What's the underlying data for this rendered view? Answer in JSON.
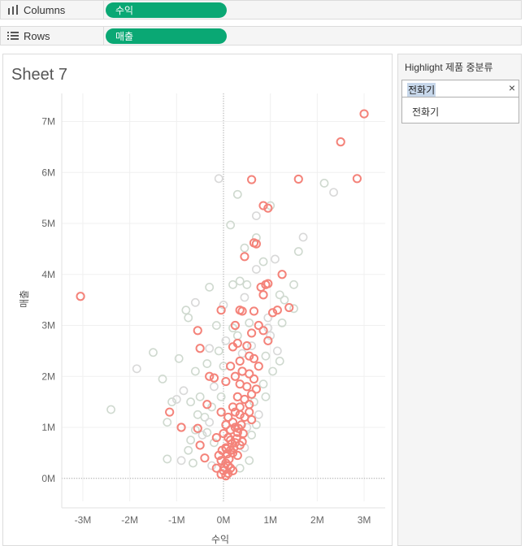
{
  "shelves": {
    "columns": {
      "label": "Columns",
      "pill": "수익"
    },
    "rows": {
      "label": "Rows",
      "pill": "매출"
    }
  },
  "sheet": {
    "title": "Sheet 7"
  },
  "highlight": {
    "title": "Highlight 제품 중분류",
    "value": "전화기",
    "clear_symbol": "×",
    "options": [
      "전화기"
    ]
  },
  "chart_data": {
    "type": "scatter",
    "xlabel": "수익",
    "ylabel": "매출",
    "xlim": [
      -3.45,
      3.45
    ],
    "ylim": [
      -0.45,
      7.55
    ],
    "x_ticks": [
      {
        "v": -3,
        "label": "-3M"
      },
      {
        "v": -2,
        "label": "-2M"
      },
      {
        "v": -1,
        "label": "-1M"
      },
      {
        "v": 0,
        "label": "0M"
      },
      {
        "v": 1,
        "label": "1M"
      },
      {
        "v": 2,
        "label": "2M"
      },
      {
        "v": 3,
        "label": "3M"
      }
    ],
    "y_ticks": [
      {
        "v": 0,
        "label": "0M"
      },
      {
        "v": 1,
        "label": "1M"
      },
      {
        "v": 2,
        "label": "2M"
      },
      {
        "v": 3,
        "label": "3M"
      },
      {
        "v": 4,
        "label": "4M"
      },
      {
        "v": 5,
        "label": "5M"
      },
      {
        "v": 6,
        "label": "6M"
      },
      {
        "v": 7,
        "label": "7M"
      }
    ],
    "colors": {
      "highlight": "#f4837a",
      "dim": "#cfd9cf",
      "dim2": "#d8d8d8"
    },
    "highlight_points": [
      [
        3.0,
        7.15
      ],
      [
        2.5,
        6.6
      ],
      [
        2.85,
        5.88
      ],
      [
        1.6,
        5.87
      ],
      [
        0.6,
        5.86
      ],
      [
        0.85,
        5.35
      ],
      [
        0.95,
        5.3
      ],
      [
        0.65,
        4.62
      ],
      [
        0.7,
        4.6
      ],
      [
        0.45,
        4.35
      ],
      [
        -3.05,
        3.57
      ],
      [
        1.25,
        4.0
      ],
      [
        0.9,
        3.8
      ],
      [
        0.95,
        3.82
      ],
      [
        0.8,
        3.75
      ],
      [
        0.85,
        3.6
      ],
      [
        0.35,
        3.3
      ],
      [
        -0.05,
        3.3
      ],
      [
        0.4,
        3.28
      ],
      [
        0.25,
        3.0
      ],
      [
        0.65,
        3.28
      ],
      [
        1.15,
        3.3
      ],
      [
        1.4,
        3.35
      ],
      [
        1.05,
        3.25
      ],
      [
        0.75,
        3.0
      ],
      [
        0.85,
        2.9
      ],
      [
        0.6,
        2.85
      ],
      [
        0.95,
        2.7
      ],
      [
        0.3,
        2.65
      ],
      [
        0.5,
        2.6
      ],
      [
        0.2,
        2.58
      ],
      [
        -0.55,
        2.9
      ],
      [
        -0.5,
        2.55
      ],
      [
        0.55,
        2.4
      ],
      [
        0.65,
        2.35
      ],
      [
        0.35,
        2.3
      ],
      [
        0.15,
        2.2
      ],
      [
        0.75,
        2.2
      ],
      [
        0.4,
        2.1
      ],
      [
        0.25,
        2.0
      ],
      [
        0.55,
        2.05
      ],
      [
        0.65,
        1.95
      ],
      [
        -0.3,
        2.0
      ],
      [
        -0.2,
        1.97
      ],
      [
        0.05,
        1.9
      ],
      [
        0.35,
        1.85
      ],
      [
        0.5,
        1.8
      ],
      [
        0.7,
        1.75
      ],
      [
        0.6,
        1.65
      ],
      [
        0.3,
        1.6
      ],
      [
        0.45,
        1.55
      ],
      [
        0.55,
        1.45
      ],
      [
        0.2,
        1.4
      ],
      [
        -0.35,
        1.45
      ],
      [
        -1.15,
        1.3
      ],
      [
        0.25,
        1.3
      ],
      [
        0.35,
        1.25
      ],
      [
        0.45,
        1.2
      ],
      [
        0.55,
        1.3
      ],
      [
        0.6,
        1.15
      ],
      [
        0.1,
        1.2
      ],
      [
        0.2,
        1.1
      ],
      [
        -0.05,
        1.3
      ],
      [
        0.05,
        1.05
      ],
      [
        -0.9,
        1.0
      ],
      [
        -0.55,
        0.98
      ],
      [
        0.15,
        0.95
      ],
      [
        0.3,
        0.9
      ],
      [
        0.0,
        0.88
      ],
      [
        -0.15,
        0.8
      ],
      [
        0.1,
        0.8
      ],
      [
        0.25,
        0.7
      ],
      [
        0.35,
        0.65
      ],
      [
        0.4,
        0.72
      ],
      [
        -0.5,
        0.65
      ],
      [
        0.05,
        0.6
      ],
      [
        0.15,
        0.55
      ],
      [
        0.2,
        0.5
      ],
      [
        0.3,
        0.45
      ],
      [
        -0.4,
        0.4
      ],
      [
        -0.1,
        0.45
      ],
      [
        -0.05,
        0.35
      ],
      [
        0.05,
        0.3
      ],
      [
        0.1,
        0.25
      ],
      [
        0.15,
        0.2
      ],
      [
        0.2,
        0.15
      ],
      [
        -0.15,
        0.2
      ],
      [
        0.0,
        0.15
      ],
      [
        0.05,
        0.05
      ],
      [
        0.1,
        0.1
      ],
      [
        -0.05,
        0.08
      ],
      [
        0.02,
        0.22
      ],
      [
        0.12,
        0.38
      ],
      [
        0.22,
        0.6
      ],
      [
        0.28,
        0.78
      ],
      [
        0.32,
        0.98
      ],
      [
        0.18,
        0.68
      ],
      [
        0.08,
        0.48
      ],
      [
        0.38,
        1.05
      ],
      [
        0.42,
        0.88
      ],
      [
        0.25,
        1.0
      ],
      [
        0.15,
        0.75
      ],
      [
        0.06,
        0.58
      ],
      [
        -0.03,
        0.55
      ],
      [
        0.35,
        1.4
      ]
    ],
    "dim_points": [
      [
        -0.1,
        5.88
      ],
      [
        0.3,
        5.57
      ],
      [
        1.0,
        5.35
      ],
      [
        0.7,
        5.15
      ],
      [
        0.15,
        4.97
      ],
      [
        2.15,
        5.79
      ],
      [
        2.35,
        5.61
      ],
      [
        0.45,
        4.52
      ],
      [
        0.7,
        4.72
      ],
      [
        1.7,
        4.73
      ],
      [
        1.6,
        4.45
      ],
      [
        0.85,
        4.25
      ],
      [
        1.1,
        4.3
      ],
      [
        1.5,
        3.8
      ],
      [
        1.2,
        3.6
      ],
      [
        0.45,
        3.55
      ],
      [
        0.35,
        3.87
      ],
      [
        -0.3,
        3.75
      ],
      [
        -0.6,
        3.45
      ],
      [
        -0.8,
        3.3
      ],
      [
        -0.75,
        3.15
      ],
      [
        0.0,
        3.4
      ],
      [
        1.5,
        3.33
      ],
      [
        1.25,
        3.05
      ],
      [
        0.95,
        3.15
      ],
      [
        0.55,
        3.05
      ],
      [
        0.2,
        2.95
      ],
      [
        -0.3,
        2.55
      ],
      [
        -1.5,
        2.47
      ],
      [
        -0.95,
        2.35
      ],
      [
        -1.85,
        2.15
      ],
      [
        -1.3,
        1.95
      ],
      [
        -0.6,
        2.1
      ],
      [
        -0.85,
        1.72
      ],
      [
        -0.7,
        1.5
      ],
      [
        -1.1,
        1.5
      ],
      [
        -1.0,
        1.55
      ],
      [
        -2.4,
        1.35
      ],
      [
        -1.2,
        1.1
      ],
      [
        -0.9,
        1.0
      ],
      [
        -1.2,
        0.38
      ],
      [
        -0.75,
        0.55
      ],
      [
        -0.9,
        0.35
      ],
      [
        -0.5,
        1.6
      ],
      [
        -0.4,
        1.2
      ],
      [
        -0.2,
        1.8
      ],
      [
        -0.1,
        2.5
      ],
      [
        0.0,
        2.2
      ],
      [
        0.4,
        2.45
      ],
      [
        0.9,
        2.4
      ],
      [
        1.05,
        2.1
      ],
      [
        1.15,
        2.5
      ],
      [
        0.85,
        1.85
      ],
      [
        0.65,
        1.5
      ],
      [
        0.75,
        1.25
      ],
      [
        0.9,
        1.6
      ],
      [
        -0.25,
        1.4
      ],
      [
        -0.3,
        1.1
      ],
      [
        -0.35,
        0.9
      ],
      [
        -0.2,
        0.7
      ],
      [
        -0.45,
        0.85
      ],
      [
        -0.6,
        0.95
      ],
      [
        -0.55,
        1.25
      ],
      [
        0.5,
        1.0
      ],
      [
        0.6,
        0.85
      ],
      [
        0.7,
        1.05
      ],
      [
        0.45,
        0.6
      ],
      [
        -0.7,
        0.75
      ],
      [
        -0.65,
        0.3
      ],
      [
        -0.25,
        0.25
      ],
      [
        0.55,
        0.35
      ],
      [
        0.35,
        0.2
      ],
      [
        0.6,
        2.6
      ],
      [
        0.3,
        2.8
      ],
      [
        -0.15,
        3.0
      ],
      [
        1.0,
        2.8
      ],
      [
        1.2,
        2.3
      ],
      [
        0.5,
        3.8
      ],
      [
        0.7,
        4.1
      ],
      [
        0.2,
        3.8
      ],
      [
        1.3,
        3.5
      ],
      [
        0.95,
        2.95
      ],
      [
        -0.35,
        2.25
      ],
      [
        -0.05,
        1.6
      ],
      [
        0.05,
        2.7
      ]
    ]
  }
}
